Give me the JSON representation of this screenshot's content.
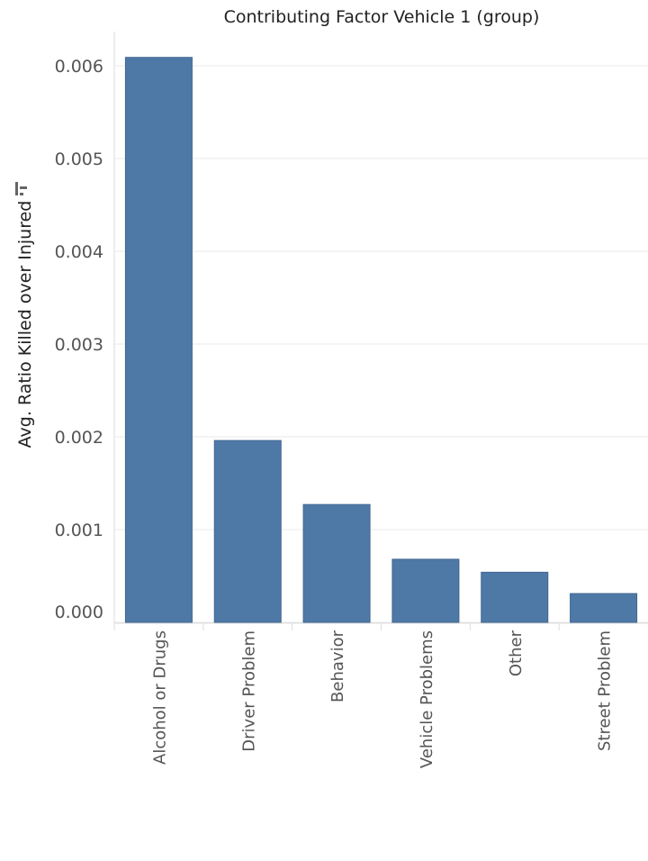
{
  "chart_data": {
    "type": "bar",
    "title": "Contributing Factor Vehicle 1 (group)",
    "xlabel": "",
    "ylabel": "Avg. Ratio Killed over Injured",
    "categories": [
      "Alcohol or Drugs",
      "Driver Problem",
      "Behavior",
      "Vehicle Problems",
      "Other",
      "Street Problem"
    ],
    "values": [
      0.00609,
      0.00196,
      0.00127,
      0.00068,
      0.00054,
      0.00031
    ],
    "ylim": [
      0,
      0.006
    ],
    "yticks": [
      "0.000",
      "0.001",
      "0.002",
      "0.003",
      "0.004",
      "0.005",
      "0.006"
    ],
    "bar_color": "#4e79a7",
    "grid": true,
    "sort_icon": "sort-descending-icon"
  }
}
